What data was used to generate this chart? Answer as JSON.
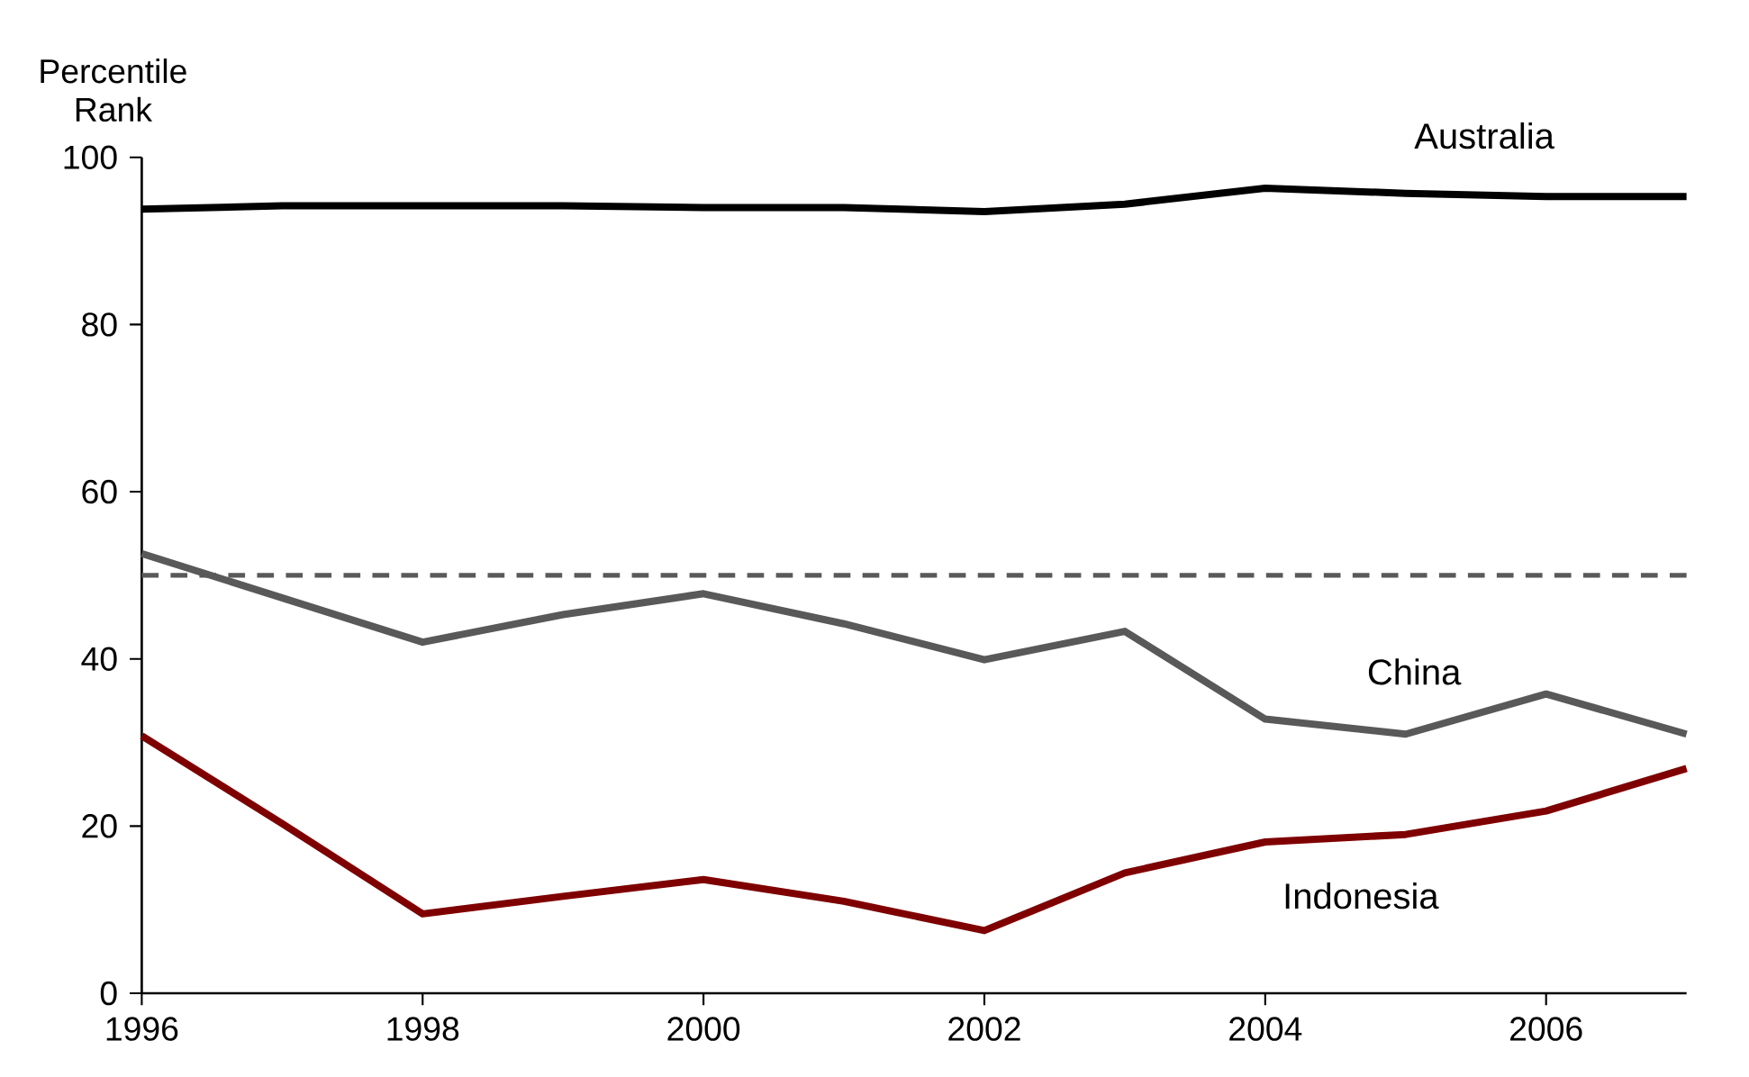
{
  "chart_data": {
    "type": "line",
    "ylabel": "Percentile Rank",
    "x": [
      1996,
      1997,
      1998,
      1999,
      2000,
      2001,
      2002,
      2003,
      2004,
      2005,
      2006,
      2007
    ],
    "series": [
      {
        "name": "Australia",
        "color": "#000000",
        "values": [
          93.8,
          94.2,
          94.2,
          94.2,
          94.0,
          94.0,
          93.5,
          94.4,
          96.3,
          95.7,
          95.3,
          95.3
        ]
      },
      {
        "name": "China",
        "color": "#595959",
        "values": [
          52.6,
          47.3,
          42.0,
          45.3,
          47.8,
          44.2,
          39.9,
          43.3,
          32.8,
          31.0,
          35.8,
          31.0
        ]
      },
      {
        "name": "Indonesia",
        "color": "#7f0000",
        "values": [
          30.8,
          20.3,
          9.5,
          11.6,
          13.6,
          11.0,
          7.5,
          14.4,
          18.1,
          19.0,
          21.8,
          26.9
        ]
      }
    ],
    "xlim": [
      1996,
      2007
    ],
    "xticks": [
      1996,
      1998,
      2000,
      2002,
      2004,
      2006
    ],
    "ylim": [
      0,
      100
    ],
    "yticks": [
      0,
      20,
      40,
      60,
      80,
      100
    ],
    "ref_lines": [
      {
        "axis": "y",
        "value": 50,
        "color": "#595959",
        "line_style": "dashed"
      }
    ],
    "grid": false,
    "marker": "none",
    "line_style": "solid"
  }
}
